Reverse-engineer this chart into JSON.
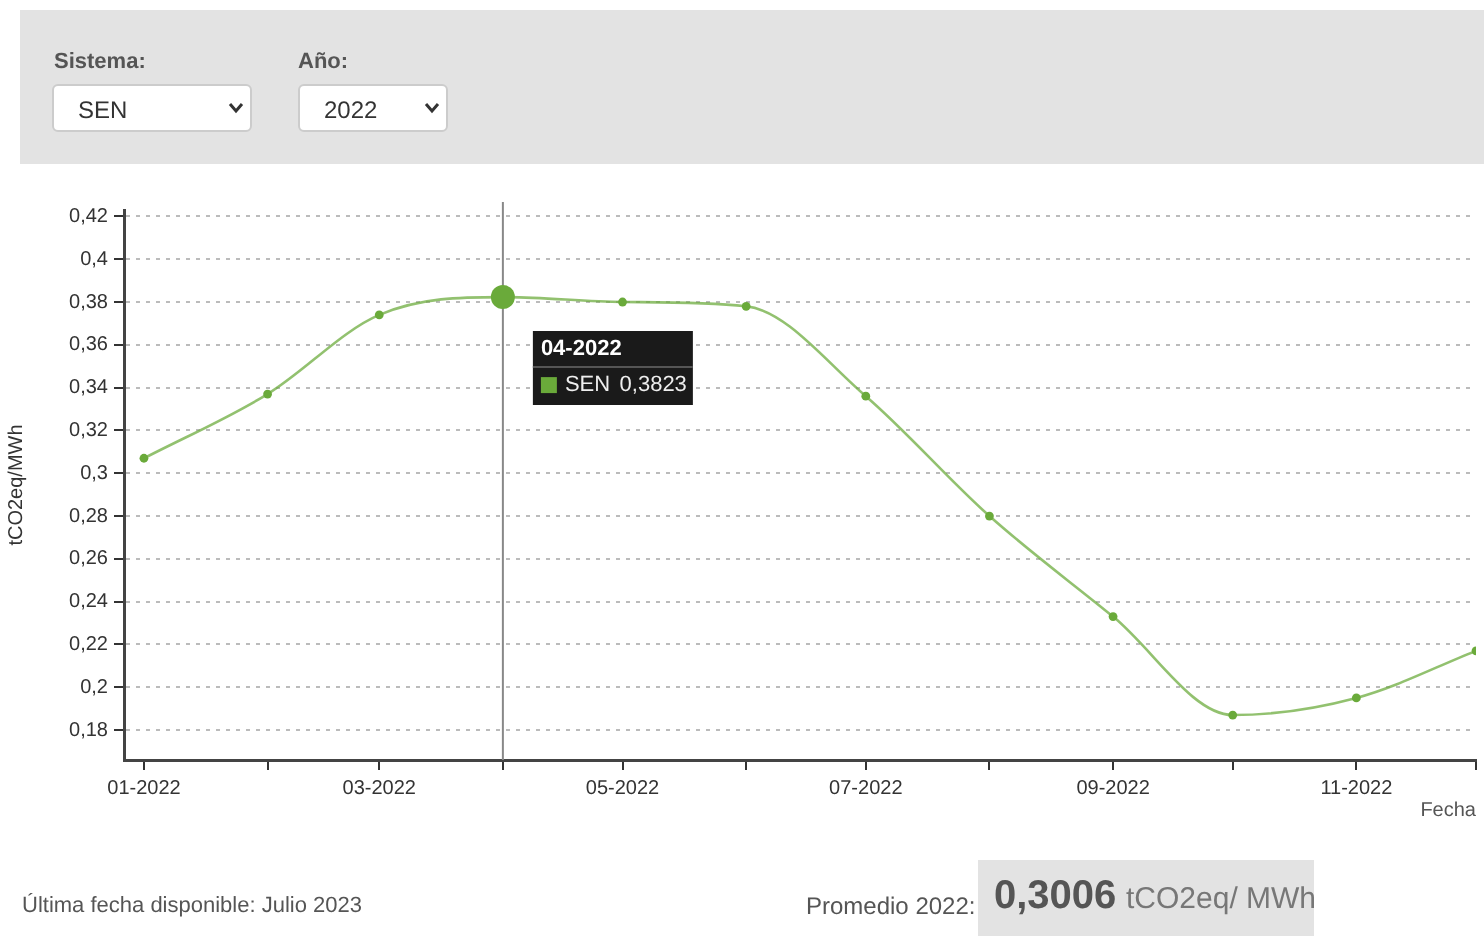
{
  "chart_data": {
    "type": "line",
    "xlabel": "Fecha",
    "ylabel": "tCO2eq/MWh",
    "x": [
      "2022-01",
      "2022-02",
      "2022-03",
      "2022-04",
      "2022-05",
      "2022-06",
      "2022-07",
      "2022-08",
      "2022-09",
      "2022-10",
      "2022-11",
      "2022-12"
    ],
    "series": [
      {
        "name": "SEN",
        "color": "#6aaa3a",
        "values": [
          0.307,
          0.337,
          0.374,
          0.3823,
          0.38,
          0.378,
          0.336,
          0.28,
          0.233,
          0.187,
          0.195,
          0.217
        ]
      }
    ],
    "xlim": [
      "2021-12-27",
      "2022-12"
    ],
    "xticks": [
      {
        "value": "2022-01",
        "label": "01-2022"
      },
      {
        "value": "2022-02",
        "label": null
      },
      {
        "value": "2022-03",
        "label": "03-2022"
      },
      {
        "value": "2022-04",
        "label": null
      },
      {
        "value": "2022-05",
        "label": "05-2022"
      },
      {
        "value": "2022-06",
        "label": null
      },
      {
        "value": "2022-07",
        "label": "07-2022"
      },
      {
        "value": "2022-08",
        "label": null
      },
      {
        "value": "2022-09",
        "label": "09-2022"
      },
      {
        "value": "2022-10",
        "label": null
      },
      {
        "value": "2022-11",
        "label": "11-2022"
      },
      {
        "value": "2022-12",
        "label": null
      }
    ],
    "ylim": [
      0.166,
      0.423
    ],
    "yticks": [
      {
        "value": 0.18,
        "label": "0,18"
      },
      {
        "value": 0.2,
        "label": "0,2"
      },
      {
        "value": 0.22,
        "label": "0,22"
      },
      {
        "value": 0.24,
        "label": "0,24"
      },
      {
        "value": 0.26,
        "label": "0,26"
      },
      {
        "value": 0.28,
        "label": "0,28"
      },
      {
        "value": 0.3,
        "label": "0,3"
      },
      {
        "value": 0.32,
        "label": "0,32"
      },
      {
        "value": 0.34,
        "label": "0,34"
      },
      {
        "value": 0.36,
        "label": "0,36"
      },
      {
        "value": 0.38,
        "label": "0,38"
      },
      {
        "value": 0.4,
        "label": "0,4"
      },
      {
        "value": 0.42,
        "label": "0,42"
      }
    ],
    "ref_lines": [
      {
        "axis": "x",
        "value": "2022-04",
        "color": "#888888"
      }
    ],
    "grid": "y",
    "legend": "top",
    "marker": "circle",
    "line_style": "solid",
    "annotations": [
      "Sistema:",
      "SEN",
      "Año:",
      "2022",
      {
        "text": "04-2022",
        "x": "2022-04",
        "y": 0.3823
      },
      "0,3823",
      "Última fecha disponible: Julio 2023",
      "Promedio 2022:",
      "0,3006",
      "tCO2eq/ MWh"
    ]
  }
}
